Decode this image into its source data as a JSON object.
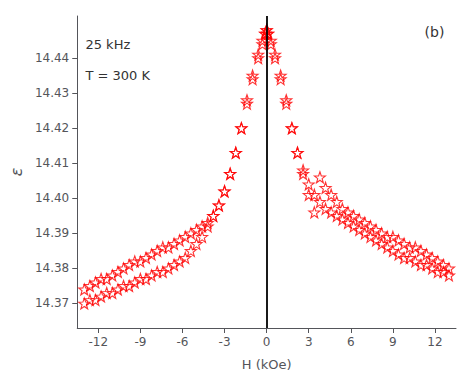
{
  "chart_data": {
    "type": "scatter",
    "title": "(b)",
    "annotations": [
      "25 kHz",
      "T = 300 K"
    ],
    "xlabel": "H (kOe)",
    "ylabel": "ε",
    "xlim": [
      -13.5,
      13.5
    ],
    "ylim": [
      14.363,
      14.452
    ],
    "xticks": [
      -12,
      -9,
      -6,
      -3,
      0,
      3,
      6,
      9,
      12
    ],
    "yticks": [
      14.37,
      14.38,
      14.39,
      {
        "value": 14.4,
        "label": "14.40"
      },
      14.41,
      14.42,
      14.43,
      14.44
    ],
    "grid": false,
    "vline": 0,
    "series": [
      {
        "color": "#FF0000",
        "marker": "star",
        "x": [
          -13.0,
          -12.6,
          -12.2,
          -11.8,
          -11.4,
          -11.0,
          -10.6,
          -10.2,
          -9.8,
          -9.4,
          -9.0,
          -8.6,
          -8.2,
          -7.8,
          -7.4,
          -7.0,
          -6.6,
          -6.2,
          -5.8,
          -5.4,
          -5.0,
          -4.6,
          -4.2,
          -3.8,
          -3.4,
          -3.0,
          -2.6,
          -2.2,
          -1.8,
          -1.4,
          -1.0,
          -0.6,
          -0.3,
          -0.1,
          0.0,
          0.1,
          0.3,
          0.6,
          1.0,
          1.4,
          1.8,
          2.2,
          2.6,
          3.0,
          3.4,
          3.8,
          4.2,
          4.6,
          5.0,
          5.4,
          5.8,
          6.2,
          6.6,
          7.0,
          7.4,
          7.8,
          8.2,
          8.6,
          9.0,
          9.4,
          9.8,
          10.2,
          10.6,
          11.0,
          11.4,
          11.8,
          12.2,
          12.6,
          13.0
        ],
        "values": [
          14.37,
          14.371,
          14.371,
          14.372,
          14.373,
          14.373,
          14.374,
          14.375,
          14.375,
          14.376,
          14.377,
          14.377,
          14.378,
          14.379,
          14.379,
          14.38,
          14.381,
          14.382,
          14.383,
          14.385,
          14.387,
          14.389,
          14.392,
          14.395,
          14.398,
          14.402,
          14.407,
          14.413,
          14.42,
          14.428,
          14.435,
          14.441,
          14.445,
          14.447,
          14.448,
          14.447,
          14.445,
          14.441,
          14.435,
          14.428,
          14.42,
          14.413,
          14.407,
          14.401,
          14.396,
          14.406,
          14.403,
          14.401,
          14.399,
          14.397,
          14.396,
          14.395,
          14.394,
          14.393,
          14.392,
          14.391,
          14.39,
          14.389,
          14.389,
          14.388,
          14.387,
          14.386,
          14.386,
          14.385,
          14.384,
          14.383,
          14.382,
          14.381,
          14.38
        ]
      },
      {
        "color": "#FF0000",
        "marker": "star",
        "x": [
          13.0,
          12.6,
          12.2,
          11.8,
          11.4,
          11.0,
          10.6,
          10.2,
          9.8,
          9.4,
          9.0,
          8.6,
          8.2,
          7.8,
          7.4,
          7.0,
          6.6,
          6.2,
          5.8,
          5.4,
          5.0,
          4.6,
          4.2,
          3.8,
          3.4,
          3.0,
          2.6,
          2.2,
          1.8,
          1.4,
          1.0,
          0.6,
          0.3,
          0.1,
          0.0,
          -0.1,
          -0.3,
          -0.6,
          -1.0,
          -1.4,
          -1.8,
          -2.2,
          -2.6,
          -3.0,
          -3.4,
          -3.8,
          -4.2,
          -4.6,
          -5.0,
          -5.4,
          -5.8,
          -6.2,
          -6.6,
          -7.0,
          -7.4,
          -7.8,
          -8.2,
          -8.6,
          -9.0,
          -9.4,
          -9.8,
          -10.2,
          -10.6,
          -11.0,
          -11.4,
          -11.8,
          -12.2,
          -12.6,
          -13.0
        ],
        "values": [
          14.378,
          14.379,
          14.379,
          14.38,
          14.381,
          14.381,
          14.382,
          14.383,
          14.383,
          14.384,
          14.385,
          14.386,
          14.387,
          14.388,
          14.389,
          14.39,
          14.391,
          14.392,
          14.393,
          14.394,
          14.395,
          14.396,
          14.397,
          14.399,
          14.401,
          14.404,
          14.408,
          14.413,
          14.42,
          14.427,
          14.434,
          14.44,
          14.444,
          14.447,
          14.448,
          14.447,
          14.444,
          14.44,
          14.434,
          14.427,
          14.42,
          14.413,
          14.407,
          14.402,
          14.398,
          14.395,
          14.393,
          14.392,
          14.391,
          14.39,
          14.389,
          14.388,
          14.387,
          14.386,
          14.386,
          14.385,
          14.384,
          14.383,
          14.382,
          14.382,
          14.381,
          14.38,
          14.379,
          14.378,
          14.377,
          14.377,
          14.376,
          14.375,
          14.374
        ]
      }
    ]
  }
}
